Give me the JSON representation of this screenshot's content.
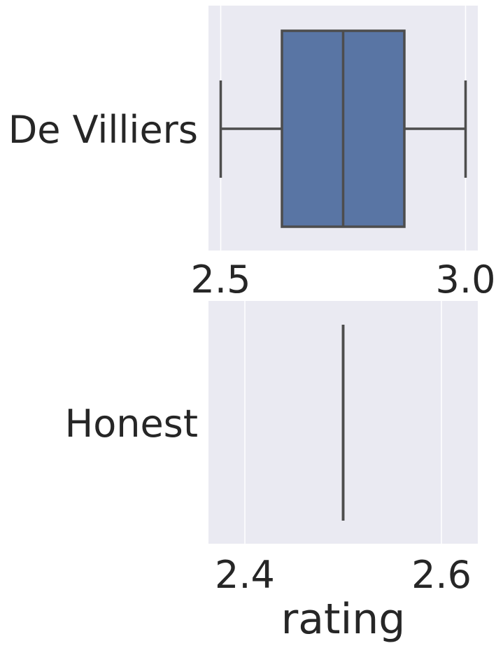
{
  "chart_data": [
    {
      "type": "box",
      "category": "De Villiers",
      "categories": [
        "De Villiers"
      ],
      "stats": {
        "min": 2.5,
        "q1": 2.625,
        "median": 2.75,
        "q3": 2.875,
        "max": 3.0
      },
      "xlim": [
        2.475,
        3.025
      ],
      "xticks": [
        2.5,
        3.0
      ],
      "xtick_labels": [
        "2.5",
        "3.0"
      ],
      "xlabel": "",
      "grid": true,
      "box_color": "#5975a4"
    },
    {
      "type": "box",
      "category": "Honest",
      "categories": [
        "Honest"
      ],
      "stats": {
        "min": 2.5,
        "q1": 2.5,
        "median": 2.5,
        "q3": 2.5,
        "max": 2.5
      },
      "xlim": [
        2.363,
        2.637
      ],
      "xticks": [
        2.4,
        2.6
      ],
      "xtick_labels": [
        "2.4",
        "2.6"
      ],
      "xlabel": "rating",
      "grid": true,
      "box_color": "#5975a4"
    }
  ],
  "colors": {
    "plot_background": "#eaeaf2",
    "grid": "#ffffff",
    "line": "#4d4d4d",
    "text": "#262626"
  }
}
